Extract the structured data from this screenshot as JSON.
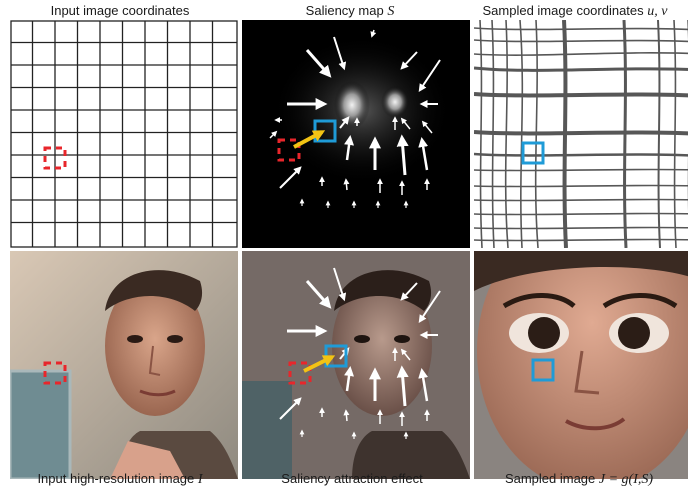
{
  "figure": {
    "top_captions": {
      "input_coords": "Input image coordinates",
      "saliency_prefix": "Saliency map ",
      "saliency_symbol": "S",
      "sampled_coords_prefix": "Sampled image coordinates ",
      "sampled_coords_symbol": "u, v"
    },
    "bottom_captions": {
      "input_image_prefix": "Input high-resolution image ",
      "input_image_symbol": "I",
      "attraction": "Saliency attraction effect",
      "sampled_image_prefix": "Sampled image ",
      "sampled_image_formula": "J = g(I,S)"
    },
    "colors": {
      "dashed_box": "#e8262b",
      "sample_box": "#1f9bd7",
      "attraction_arrow": "#f2c314",
      "grid_line": "#222222",
      "saliency_background": "#000000"
    },
    "icons": [
      "dashed-square-icon",
      "blue-square-icon",
      "yellow-arrow-icon",
      "white-vector-arrows"
    ]
  }
}
